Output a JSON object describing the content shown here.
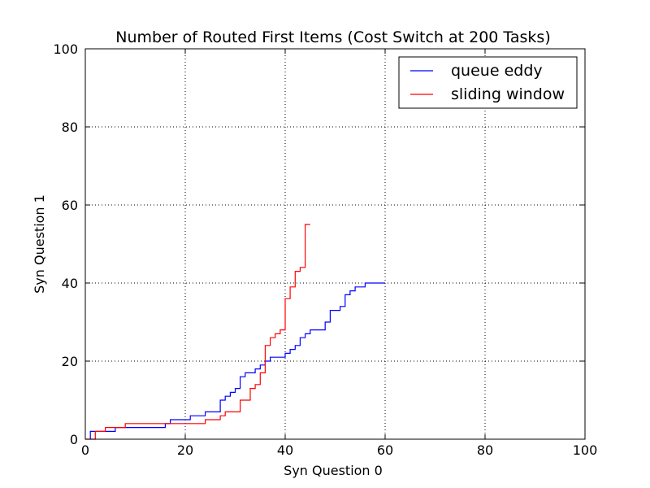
{
  "chart_data": {
    "type": "line",
    "title": "Number of Routed First Items (Cost Switch at 200 Tasks)",
    "xlabel": "Syn Question 0",
    "ylabel": "Syn Question 1",
    "xlim": [
      0,
      100
    ],
    "ylim": [
      0,
      100
    ],
    "xticks": [
      0,
      20,
      40,
      60,
      80,
      100
    ],
    "yticks": [
      0,
      20,
      40,
      60,
      80,
      100
    ],
    "grid": true,
    "legend_position": "top-right",
    "step": true,
    "series": [
      {
        "name": "queue eddy",
        "color": "#0000ff",
        "points": [
          [
            1,
            0
          ],
          [
            1,
            2
          ],
          [
            6,
            2
          ],
          [
            6,
            3
          ],
          [
            16,
            3
          ],
          [
            16,
            4
          ],
          [
            17,
            4
          ],
          [
            17,
            5
          ],
          [
            21,
            5
          ],
          [
            21,
            6
          ],
          [
            24,
            6
          ],
          [
            24,
            7
          ],
          [
            27,
            7
          ],
          [
            27,
            10
          ],
          [
            28,
            10
          ],
          [
            28,
            11
          ],
          [
            29,
            11
          ],
          [
            29,
            12
          ],
          [
            30,
            12
          ],
          [
            30,
            13
          ],
          [
            31,
            13
          ],
          [
            31,
            16
          ],
          [
            32,
            16
          ],
          [
            32,
            17
          ],
          [
            34,
            17
          ],
          [
            34,
            18
          ],
          [
            35,
            18
          ],
          [
            35,
            19
          ],
          [
            36,
            19
          ],
          [
            36,
            20
          ],
          [
            37,
            20
          ],
          [
            37,
            21
          ],
          [
            40,
            21
          ],
          [
            40,
            22
          ],
          [
            41,
            22
          ],
          [
            41,
            23
          ],
          [
            42,
            23
          ],
          [
            42,
            24
          ],
          [
            43,
            24
          ],
          [
            43,
            26
          ],
          [
            44,
            26
          ],
          [
            44,
            27
          ],
          [
            45,
            27
          ],
          [
            45,
            28
          ],
          [
            48,
            28
          ],
          [
            48,
            30
          ],
          [
            49,
            30
          ],
          [
            49,
            33
          ],
          [
            51,
            33
          ],
          [
            51,
            34
          ],
          [
            52,
            34
          ],
          [
            52,
            37
          ],
          [
            53,
            37
          ],
          [
            53,
            38
          ],
          [
            54,
            38
          ],
          [
            54,
            39
          ],
          [
            56,
            39
          ],
          [
            56,
            40
          ],
          [
            60,
            40
          ]
        ]
      },
      {
        "name": "sliding window",
        "color": "#ff0000",
        "points": [
          [
            0,
            0
          ],
          [
            2,
            0
          ],
          [
            2,
            2
          ],
          [
            4,
            2
          ],
          [
            4,
            3
          ],
          [
            8,
            3
          ],
          [
            8,
            4
          ],
          [
            24,
            4
          ],
          [
            24,
            5
          ],
          [
            27,
            5
          ],
          [
            27,
            6
          ],
          [
            28,
            6
          ],
          [
            28,
            7
          ],
          [
            31,
            7
          ],
          [
            31,
            10
          ],
          [
            33,
            10
          ],
          [
            33,
            13
          ],
          [
            34,
            13
          ],
          [
            34,
            14
          ],
          [
            35,
            14
          ],
          [
            35,
            17
          ],
          [
            36,
            17
          ],
          [
            36,
            24
          ],
          [
            37,
            24
          ],
          [
            37,
            26
          ],
          [
            38,
            26
          ],
          [
            38,
            27
          ],
          [
            39,
            27
          ],
          [
            39,
            28
          ],
          [
            40,
            28
          ],
          [
            40,
            36
          ],
          [
            41,
            36
          ],
          [
            41,
            39
          ],
          [
            42,
            39
          ],
          [
            42,
            43
          ],
          [
            43,
            43
          ],
          [
            43,
            44
          ],
          [
            44,
            44
          ],
          [
            44,
            55
          ],
          [
            45,
            55
          ]
        ]
      }
    ]
  }
}
